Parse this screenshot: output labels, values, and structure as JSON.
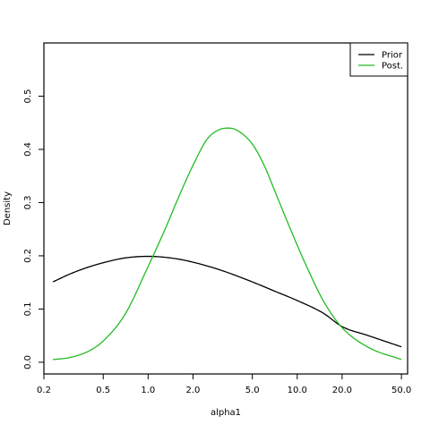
{
  "chart_data": {
    "type": "line",
    "title": "",
    "xlabel": "alpha1",
    "ylabel": "Density",
    "x_scale": "log",
    "xlim": [
      0.2,
      55
    ],
    "ylim": [
      -0.022,
      0.6
    ],
    "grid": false,
    "legend_position": "top-right",
    "x_ticks": [
      0.2,
      0.5,
      1.0,
      2.0,
      5.0,
      10.0,
      20.0,
      50.0
    ],
    "x_tick_labels": [
      "0.2",
      "0.5",
      "1.0",
      "2.0",
      "5.0",
      "10.0",
      "20.0",
      "50.0"
    ],
    "y_ticks": [
      0.0,
      0.1,
      0.2,
      0.3,
      0.4,
      0.5
    ],
    "y_tick_labels": [
      "0.0",
      "0.1",
      "0.2",
      "0.3",
      "0.4",
      "0.5"
    ],
    "series": [
      {
        "name": "Prior",
        "color": "#000000",
        "x": [
          0.23,
          0.3,
          0.4,
          0.5,
          0.7,
          1.0,
          1.5,
          2.0,
          3.0,
          5.0,
          7.0,
          10.0,
          15.0,
          20.0,
          30.0,
          50.0
        ],
        "y": [
          0.151,
          0.166,
          0.179,
          0.187,
          0.196,
          0.199,
          0.195,
          0.188,
          0.174,
          0.151,
          0.134,
          0.116,
          0.092,
          0.067,
          0.05,
          0.029
        ]
      },
      {
        "name": "Post.",
        "color": "#22bb22",
        "x": [
          0.23,
          0.3,
          0.4,
          0.5,
          0.7,
          1.0,
          1.3,
          1.6,
          2.0,
          2.5,
          3.0,
          3.5,
          4.0,
          5.0,
          6.0,
          7.0,
          8.0,
          10.0,
          12.0,
          15.0,
          20.0,
          30.0,
          50.0
        ],
        "y": [
          0.005,
          0.009,
          0.021,
          0.04,
          0.09,
          0.18,
          0.25,
          0.31,
          0.37,
          0.42,
          0.437,
          0.44,
          0.435,
          0.41,
          0.37,
          0.325,
          0.285,
          0.22,
          0.17,
          0.115,
          0.065,
          0.028,
          0.005
        ]
      }
    ]
  }
}
